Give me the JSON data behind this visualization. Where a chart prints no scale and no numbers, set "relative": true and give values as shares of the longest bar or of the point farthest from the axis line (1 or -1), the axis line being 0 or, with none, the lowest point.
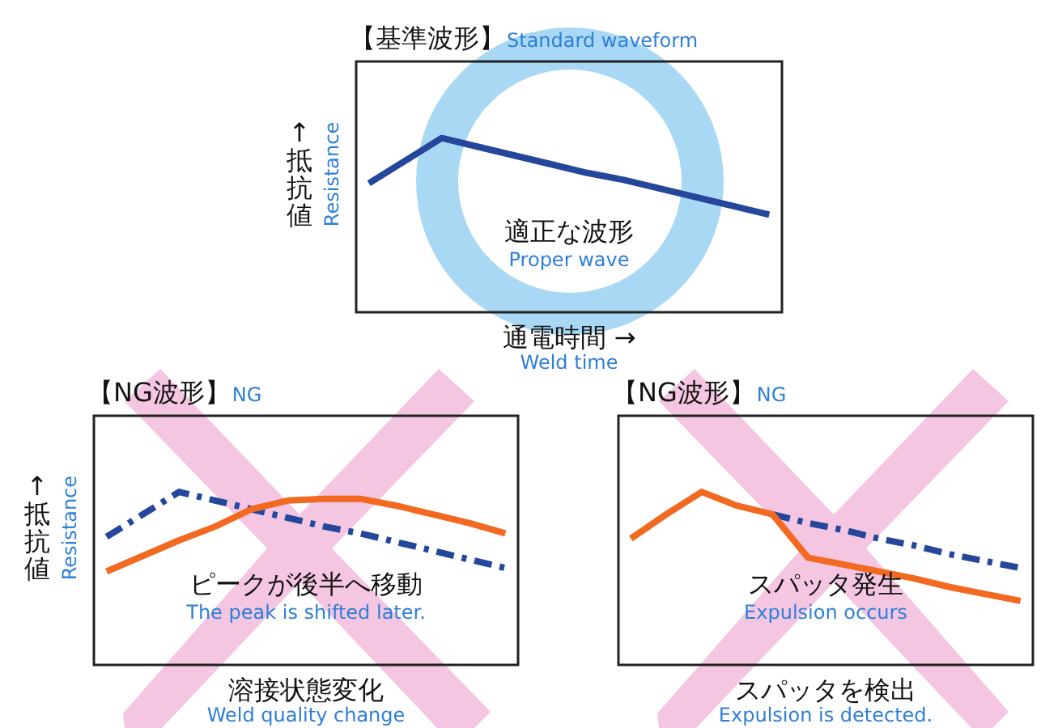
{
  "chart_data": [
    {
      "type": "line",
      "title": "【基準波形】",
      "subtitle": "Standard waveform",
      "xlabel": "通電時間 →\nWeld time",
      "ylabel": "↑抵抗値\nResistance",
      "relative": true,
      "categories": [
        null,
        null,
        null,
        null,
        null,
        null,
        null,
        null,
        null,
        null,
        null,
        null
      ],
      "series": [
        {
          "color": "#24469b",
          "line_style": "solid",
          "values": [
            0.74,
            0.87,
            1,
            0.95,
            0.9,
            0.85,
            0.8,
            0.76,
            0.71,
            0.66,
            0.61,
            0.56
          ]
        }
      ],
      "annotations": [
        "適正な波形",
        "Proper wave"
      ]
    },
    {
      "type": "line",
      "title": "【NG波形】",
      "subtitle": "NG",
      "xlabel": "溶接状態変化\nWeld quality change",
      "ylabel": "↑抵抗値\nResistance",
      "relative": true,
      "categories": [
        null,
        null,
        null,
        null,
        null,
        null,
        null,
        null,
        null,
        null,
        null,
        null
      ],
      "series": [
        {
          "color": "#24469b",
          "line_style": "dashed",
          "values": [
            0.74,
            0.87,
            1,
            0.95,
            0.9,
            0.85,
            0.8,
            0.76,
            0.71,
            0.66,
            0.61,
            0.56
          ]
        },
        {
          "color": "#f26a21",
          "line_style": "solid",
          "values": [
            0.54,
            0.63,
            0.72,
            0.8,
            0.9,
            0.95,
            0.96,
            0.96,
            0.92,
            0.87,
            0.82,
            0.76
          ]
        }
      ],
      "annotations": [
        "ピークが後半へ移動",
        "The peak is shifted later."
      ]
    },
    {
      "type": "line",
      "title": "【NG波形】",
      "subtitle": "NG",
      "xlabel": "スパッタを検出\nExpulsion is detected.",
      "relative": true,
      "categories": [
        null,
        null,
        null,
        null,
        null,
        null,
        null,
        null,
        null,
        null,
        null,
        null
      ],
      "series": [
        {
          "color": "#24469b",
          "line_style": "dashed",
          "values": [
            null,
            null,
            null,
            null,
            0.87,
            0.82,
            0.78,
            0.73,
            0.69,
            0.64,
            0.6,
            0.56
          ]
        },
        {
          "color": "#f26a21",
          "line_style": "solid",
          "values": [
            0.73,
            0.87,
            1,
            0.92,
            0.87,
            0.62,
            0.58,
            0.54,
            0.5,
            0.45,
            0.41,
            0.37
          ]
        }
      ],
      "annotations": [
        "スパッタ発生",
        "Expulsion occurs"
      ]
    }
  ]
}
